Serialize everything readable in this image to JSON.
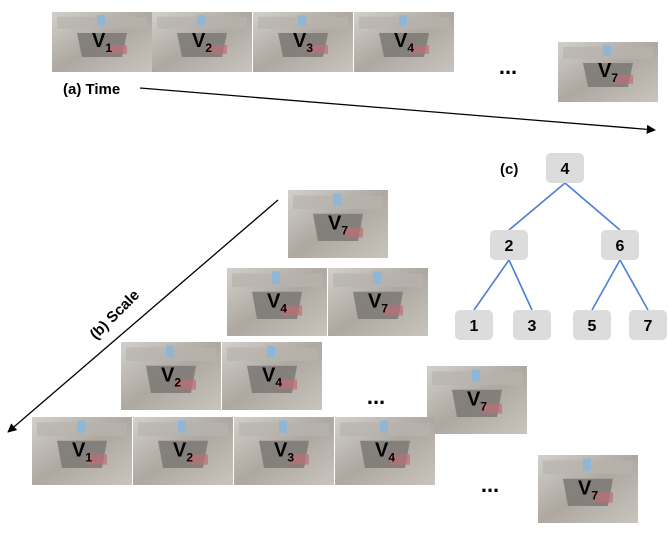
{
  "timeline": {
    "label": "(a) Time",
    "ellipsis": "...",
    "frames": [
      {
        "letter": "V",
        "sub": "1"
      },
      {
        "letter": "V",
        "sub": "2"
      },
      {
        "letter": "V",
        "sub": "3"
      },
      {
        "letter": "V",
        "sub": "4"
      },
      {
        "letter": "V",
        "sub": "7"
      }
    ]
  },
  "scale": {
    "label": "(b) Scale",
    "rows": [
      {
        "frames": [
          {
            "letter": "V",
            "sub": "7"
          }
        ]
      },
      {
        "frames": [
          {
            "letter": "V",
            "sub": "4"
          },
          {
            "letter": "V",
            "sub": "7"
          }
        ]
      },
      {
        "frames": [
          {
            "letter": "V",
            "sub": "2"
          },
          {
            "letter": "V",
            "sub": "4"
          },
          {
            "letter": "V",
            "sub": "7"
          }
        ],
        "ellipsis": "..."
      },
      {
        "frames": [
          {
            "letter": "V",
            "sub": "1"
          },
          {
            "letter": "V",
            "sub": "2"
          },
          {
            "letter": "V",
            "sub": "3"
          },
          {
            "letter": "V",
            "sub": "4"
          },
          {
            "letter": "V",
            "sub": "7"
          }
        ],
        "ellipsis": "..."
      }
    ]
  },
  "tree": {
    "label": "(c)",
    "nodes": [
      "4",
      "2",
      "6",
      "1",
      "3",
      "5",
      "7"
    ]
  }
}
